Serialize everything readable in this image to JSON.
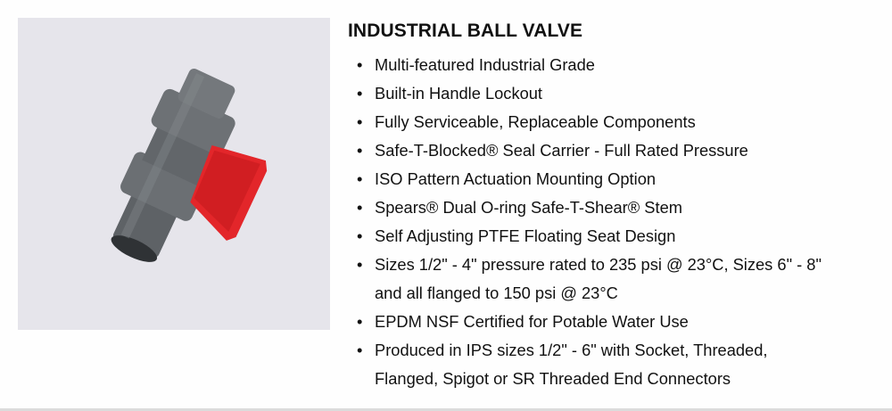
{
  "product": {
    "title": "INDUSTRIAL BALL VALVE",
    "image_alt": "industrial ball valve",
    "colors": {
      "background": "#e6e5eb",
      "valve_body": "#6b6f73",
      "handle": "#e3262a"
    },
    "features": [
      "Multi-featured Industrial Grade",
      "Built-in Handle Lockout",
      "Fully Serviceable, Replaceable Components",
      "Safe-T-Blocked® Seal Carrier - Full Rated Pressure",
      "ISO Pattern Actuation Mounting Option",
      "Spears® Dual O-ring Safe-T-Shear® Stem",
      "Self Adjusting PTFE Floating Seat Design",
      "Sizes 1/2\" - 4\" pressure rated to 235 psi @ 23°C, Sizes 6\" - 8\"",
      "and all flanged to 150 psi @ 23°C",
      "EPDM NSF Certified for Potable Water Use",
      "Produced in IPS sizes 1/2\" - 6\" with Socket, Threaded,",
      "Flanged, Spigot or SR Threaded End Connectors"
    ]
  }
}
